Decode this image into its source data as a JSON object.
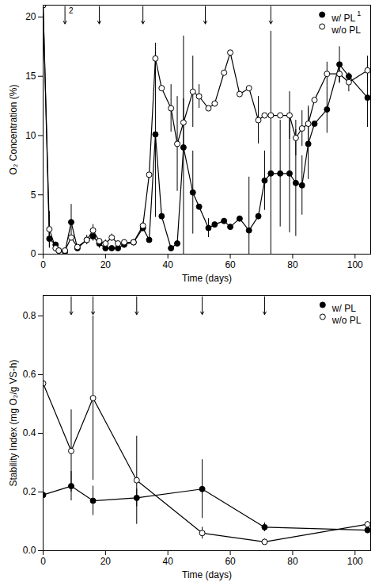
{
  "chart_data": [
    {
      "type": "line",
      "x_label": "Time (days)",
      "y_label": "O₂ Concentration (%)",
      "xlim": [
        0,
        105
      ],
      "xticks": [
        0,
        20,
        40,
        60,
        80,
        100
      ],
      "ylim": [
        0,
        21
      ],
      "yticks": [
        0,
        5,
        10,
        15,
        20
      ],
      "legend": "top-right",
      "arrows": {
        "x": [
          7,
          18,
          32,
          52,
          73
        ],
        "labels": [
          "2",
          null,
          null,
          null,
          null
        ]
      },
      "x": [
        0,
        2,
        4,
        5,
        7,
        9,
        11,
        14,
        16,
        18,
        20,
        22,
        24,
        26,
        29,
        32,
        34,
        36,
        38,
        41,
        43,
        45,
        48,
        50,
        53,
        55,
        58,
        60,
        63,
        66,
        69,
        71,
        73,
        76,
        79,
        81,
        83,
        85,
        87,
        91,
        95,
        98,
        104
      ],
      "series": [
        {
          "name": "w/ PL",
          "note": "1",
          "color": "#000000",
          "marker": "filled circle",
          "values": [
            21,
            1.3,
            0.8,
            0.3,
            0.2,
            2.7,
            0.5,
            1.2,
            1.5,
            0.9,
            0.5,
            0.5,
            0.5,
            0.8,
            1.0,
            2.2,
            1.2,
            10.1,
            3.2,
            0.5,
            0.9,
            9.0,
            5.2,
            4.0,
            2.2,
            2.5,
            2.8,
            2.3,
            3.0,
            2.0,
            3.2,
            6.2,
            6.8,
            6.8,
            6.8,
            6.0,
            5.8,
            9.3,
            11.0,
            12.2,
            16.0,
            15.0,
            13.2
          ],
          "errors": [
            null,
            0.8,
            null,
            null,
            null,
            1.5,
            null,
            0.4,
            0.4,
            0.4,
            null,
            null,
            null,
            0.3,
            null,
            0.3,
            null,
            7.0,
            null,
            null,
            null,
            9.4,
            3.5,
            null,
            0.8,
            null,
            null,
            null,
            null,
            4.5,
            null,
            2.5,
            12,
            4.5,
            5,
            4.5,
            2.5,
            3,
            null,
            2,
            1.5,
            null,
            2.5
          ]
        },
        {
          "name": "w/o PL",
          "color": "#000000",
          "marker": "open circle",
          "values": [
            21,
            2.1,
            0.5,
            0.3,
            0.3,
            1.4,
            0.6,
            1.2,
            2.0,
            1.1,
            0.9,
            1.4,
            0.9,
            1.0,
            1.0,
            2.4,
            6.7,
            16.5,
            14.0,
            12.3,
            9.3,
            11.1,
            13.7,
            13.3,
            12.3,
            12.7,
            15.3,
            17.0,
            13.5,
            14.0,
            11.3,
            11.7,
            11.7,
            11.7,
            11.7,
            9.8,
            10.6,
            11.0,
            13.0,
            15.2,
            15.2,
            14.5,
            15.5
          ],
          "errors": [
            null,
            1.5,
            null,
            null,
            null,
            null,
            null,
            null,
            0.5,
            null,
            0.3,
            0.3,
            null,
            null,
            null,
            0.3,
            null,
            1.3,
            null,
            2,
            4,
            2,
            3,
            1,
            null,
            null,
            null,
            null,
            null,
            null,
            2,
            null,
            null,
            null,
            2,
            1.5,
            1.5,
            1.5,
            null,
            1,
            0.8,
            0.8,
            1.2
          ]
        }
      ]
    },
    {
      "type": "line",
      "x_label": "Time (days)",
      "y_label": "Stability Index (mg O₂/g VS-h)",
      "xlim": [
        0,
        105
      ],
      "xticks": [
        0,
        20,
        40,
        60,
        80,
        100
      ],
      "ylim": [
        0,
        0.87
      ],
      "yticks": [
        {
          "value": 0,
          "label": "0.0"
        },
        {
          "value": 0.2,
          "label": "0.2"
        },
        {
          "value": 0.4,
          "label": "0.4"
        },
        {
          "value": 0.6,
          "label": "0.6"
        },
        {
          "value": 0.8,
          "label": "0.8"
        }
      ],
      "legend": "top-right",
      "arrows": {
        "x": [
          9,
          16,
          30,
          51,
          71
        ],
        "labels": [
          null,
          null,
          null,
          null,
          null
        ]
      },
      "x": [
        0,
        9,
        16,
        30,
        51,
        71,
        104
      ],
      "series": [
        {
          "name": "w/ PL",
          "color": "#000000",
          "marker": "filled circle",
          "values": [
            0.19,
            0.22,
            0.17,
            0.18,
            0.21,
            0.08,
            0.07
          ],
          "errors": [
            0.01,
            0.05,
            0.05,
            0.03,
            0.1,
            0.015,
            0.01
          ]
        },
        {
          "name": "w/o PL",
          "color": "#000000",
          "marker": "open circle",
          "values": [
            0.57,
            0.34,
            0.52,
            0.24,
            0.06,
            0.03,
            0.09
          ],
          "errors": [
            0.17,
            0.14,
            0.28,
            0.15,
            0.02,
            0.01,
            0.01
          ]
        }
      ]
    }
  ]
}
